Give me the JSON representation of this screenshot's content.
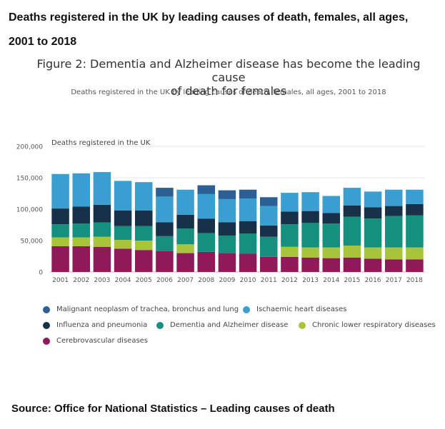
{
  "heading": {
    "line1": "Deaths registered in the UK by leading causes of death, females, all ages,",
    "line2": "2001 to 2018"
  },
  "figure": {
    "title_line1": "Figure 2: Dementia and Alzheimer disease has become the leading cause",
    "title_line2": "of death for females",
    "subtitle": "Deaths registered in the UK by leading causes of death, females, all ages, 2001 to 2018"
  },
  "source": "Source: Office for National Statistics – Leading causes of death",
  "chart_data": {
    "type": "bar",
    "stacked": true,
    "ylabel": "Deaths registered in the UK",
    "ylim": [
      0,
      200000
    ],
    "yticks": [
      0,
      50000,
      100000,
      150000,
      200000
    ],
    "ytick_labels": [
      "0",
      "50,000",
      "100,000",
      "150,000",
      "200,000"
    ],
    "grid": true,
    "legend_position": "bottom",
    "categories": [
      "2001",
      "2002",
      "2003",
      "2004",
      "2005",
      "2006",
      "2007",
      "2008",
      "2009",
      "2010",
      "2011",
      "2012",
      "2013",
      "2014",
      "2015",
      "2016",
      "2017",
      "2018"
    ],
    "series": [
      {
        "name": "Cerebrovascular diseases",
        "color": "#8e1a5a",
        "values": [
          41000,
          41000,
          40000,
          37000,
          35000,
          33000,
          30000,
          32000,
          30000,
          29000,
          24000,
          24000,
          23000,
          22000,
          23000,
          21000,
          20000,
          20000
        ]
      },
      {
        "name": "Chronic lower respiratory diseases",
        "color": "#a8c43a",
        "values": [
          14000,
          14000,
          16000,
          14000,
          15000,
          0,
          14000,
          0,
          0,
          0,
          0,
          16000,
          16000,
          17000,
          19000,
          18000,
          19000,
          19000
        ]
      },
      {
        "name": "Dementia and Alzheimer disease",
        "color": "#16907e",
        "values": [
          21000,
          22000,
          23000,
          22000,
          23000,
          24000,
          25000,
          30000,
          28000,
          32000,
          32000,
          36000,
          39000,
          38000,
          46000,
          46000,
          50000,
          51000
        ]
      },
      {
        "name": "Influenza and pneumonia",
        "color": "#173148",
        "values": [
          25000,
          27000,
          28000,
          25000,
          25000,
          22000,
          22000,
          23000,
          21000,
          20000,
          18000,
          20000,
          19000,
          17000,
          18000,
          18000,
          16000,
          18000
        ]
      },
      {
        "name": "Ischaemic heart diseases",
        "color": "#3a9fd0",
        "values": [
          55000,
          53000,
          52000,
          47000,
          45000,
          41000,
          40000,
          39000,
          37000,
          36000,
          31000,
          30000,
          30000,
          27000,
          28000,
          25000,
          26000,
          23000
        ]
      },
      {
        "name": "Malignant neoplasm of trachea, bronchus and lung",
        "color": "#2c5f94",
        "values": [
          0,
          0,
          0,
          0,
          0,
          14000,
          0,
          14000,
          14000,
          14000,
          14000,
          0,
          0,
          0,
          0,
          0,
          0,
          0
        ]
      }
    ]
  },
  "legend": [
    {
      "label": "Malignant neoplasm of trachea, bronchus and lung",
      "color": "#2c5f94"
    },
    {
      "label": "Ischaemic heart diseases",
      "color": "#3a9fd0"
    },
    {
      "label": "Influenza and pneumonia",
      "color": "#173148"
    },
    {
      "label": "Dementia and Alzheimer disease",
      "color": "#16907e"
    },
    {
      "label": "Chronic lower respiratory diseases",
      "color": "#a8c43a"
    },
    {
      "label": "Cerebrovascular diseases",
      "color": "#8e1a5a"
    }
  ]
}
